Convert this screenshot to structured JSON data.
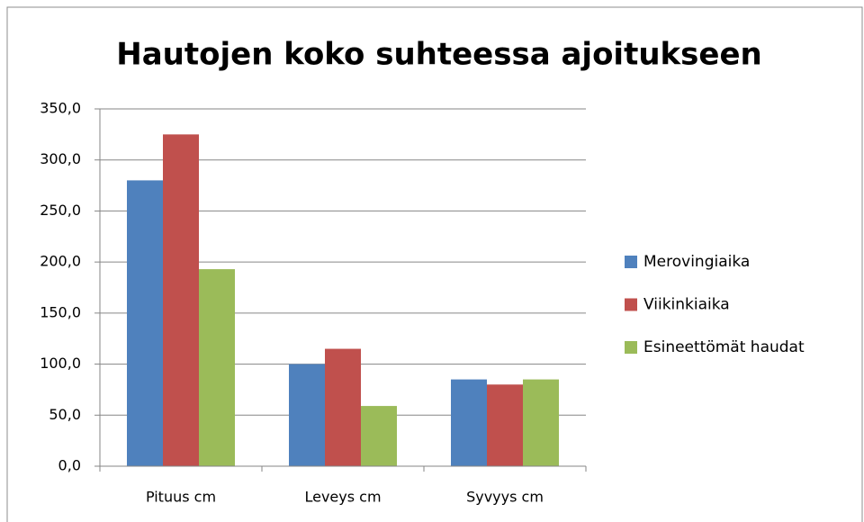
{
  "chart_data": {
    "type": "bar",
    "title": "Hautojen koko suhteessa ajoitukseen",
    "categories": [
      "Pituus cm",
      "Leveys cm",
      "Syvyys cm"
    ],
    "series": [
      {
        "name": "Merovingiaika",
        "color": "#4f81bd",
        "values": [
          280,
          100,
          85
        ]
      },
      {
        "name": "Viikinkiaika",
        "color": "#c0504d",
        "values": [
          325,
          115,
          80
        ]
      },
      {
        "name": "Esineettömät haudat",
        "color": "#9bbb59",
        "values": [
          193,
          59,
          85
        ]
      }
    ],
    "ylim": [
      0,
      350
    ],
    "yticks": [
      {
        "value": 0,
        "label": "0,0"
      },
      {
        "value": 50,
        "label": "50,0"
      },
      {
        "value": 100,
        "label": "100,0"
      },
      {
        "value": 150,
        "label": "150,0"
      },
      {
        "value": 200,
        "label": "200,0"
      },
      {
        "value": 250,
        "label": "250,0"
      },
      {
        "value": 300,
        "label": "300,0"
      },
      {
        "value": 350,
        "label": "350,0"
      }
    ],
    "grid": true,
    "legend": "right"
  }
}
